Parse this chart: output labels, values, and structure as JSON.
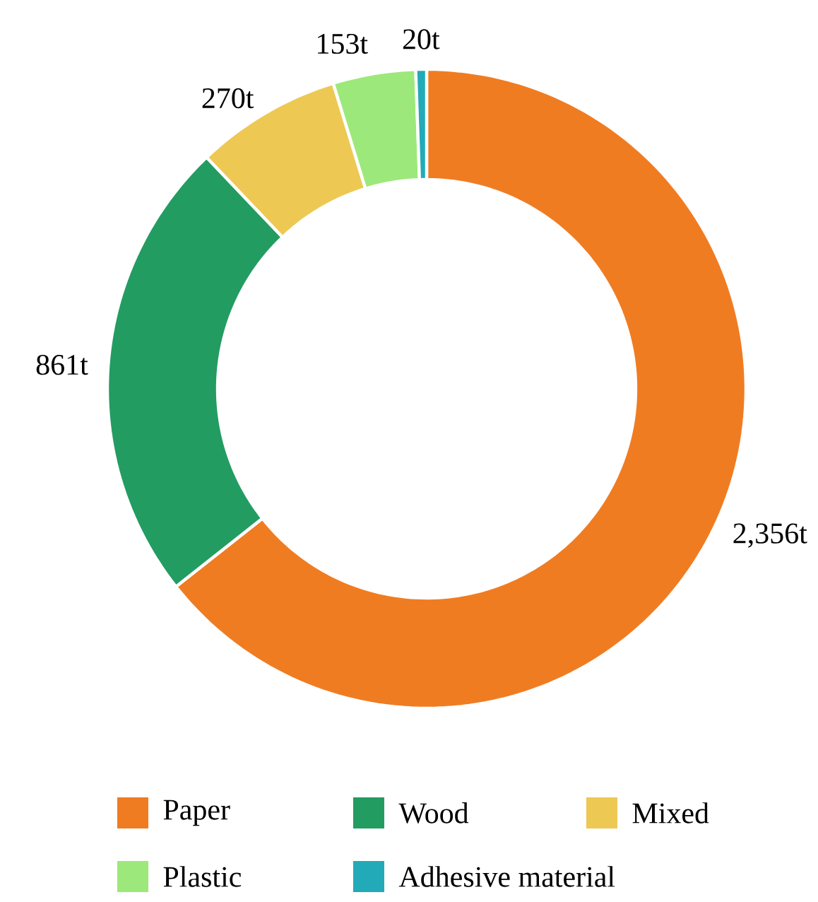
{
  "chart_data": {
    "type": "donut",
    "categories": [
      "Paper",
      "Wood",
      "Mixed",
      "Plastic",
      "Adhesive material"
    ],
    "values": [
      2356,
      861,
      270,
      153,
      20
    ],
    "colors": [
      "#f07c22",
      "#239c62",
      "#edc853",
      "#9de87a",
      "#22aab8"
    ],
    "value_labels": [
      "2,356t",
      "861t",
      "270t",
      "153t",
      "20t"
    ],
    "legend": "bottom"
  }
}
